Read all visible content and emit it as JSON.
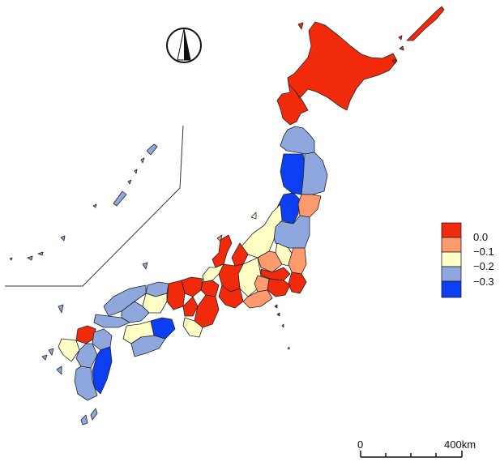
{
  "colors": {
    "c0": "#f22a0c",
    "c1": "#ff9a6e",
    "c2": "#ffffc6",
    "c3": "#8ea8dd",
    "c4": "#0c3ef2",
    "outline": "#222222"
  },
  "legend": {
    "items": [
      {
        "label": "0.0",
        "color": "#f22a0c"
      },
      {
        "label": "−0.1",
        "color": "#ff9a6e"
      },
      {
        "label": "−0.2",
        "color": "#ffffc6"
      },
      {
        "label": "−0.3",
        "color": "#8ea8dd"
      },
      {
        "label": "",
        "color": "#0c3ef2"
      }
    ]
  },
  "scale_bar": {
    "start_label": "0",
    "end_label": "400km"
  },
  "north_arrow": {
    "icon": "north-arrow-icon"
  }
}
